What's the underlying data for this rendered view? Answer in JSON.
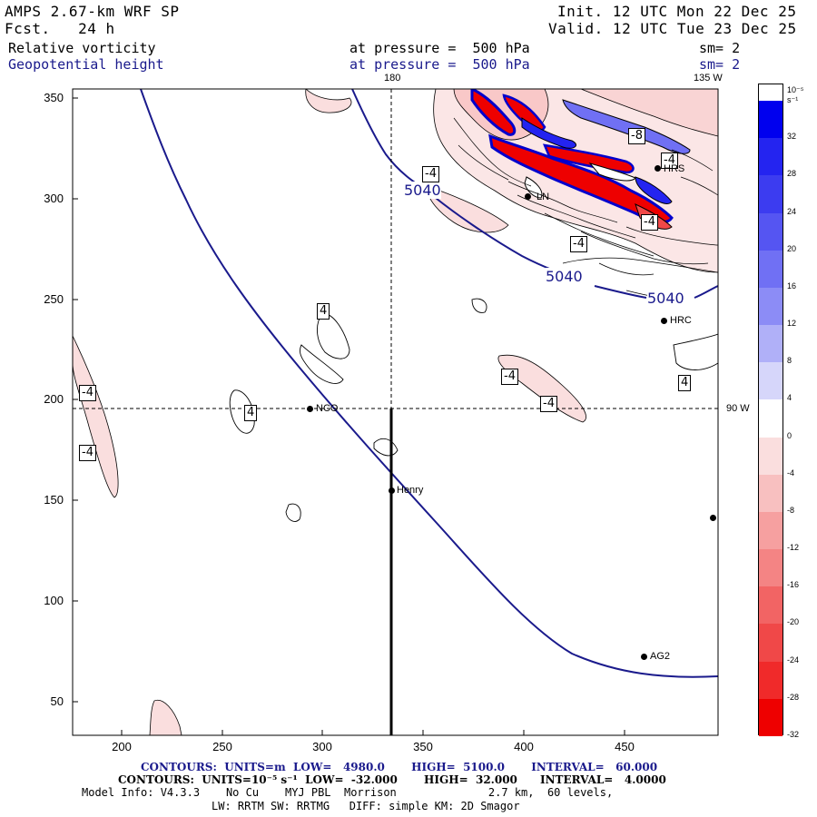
{
  "header": {
    "model": "AMPS 2.67-km WRF SP",
    "forecast": "Fcst.   24 h",
    "init": "Init. 12 UTC Mon 22 Dec 25",
    "valid": "Valid. 12 UTC Tue 23 Dec 25",
    "field1": "Relative vorticity",
    "field1_pressure": "at pressure =  500 hPa",
    "field1_sm": "sm= 2",
    "field2": "Geopotential height",
    "field2_pressure": "at pressure =  500 hPa",
    "field2_sm": "sm= 2"
  },
  "axes": {
    "x_ticks": [
      "200",
      "250",
      "300",
      "350",
      "400",
      "450"
    ],
    "y_ticks": [
      "350",
      "300",
      "250",
      "200",
      "150",
      "100",
      "50"
    ],
    "meridian_180": "180",
    "meridian_135w": "135 W",
    "meridian_90w": "90 W"
  },
  "stations": [
    {
      "name": "NCO"
    },
    {
      "name": "Henry"
    },
    {
      "name": "HRC"
    },
    {
      "name": "AG2"
    },
    {
      "name": "LN"
    },
    {
      "name": "HRS"
    },
    {
      "name": ""
    }
  ],
  "contour_labels": {
    "height": [
      "5040",
      "5040",
      "5040"
    ],
    "vorticity": [
      "-4",
      "4",
      "-4",
      "4",
      "-4",
      "-4",
      "-4",
      "-4",
      "4",
      "-4",
      "-8",
      "-4",
      "-4"
    ]
  },
  "colorbar": {
    "units": "10⁻⁵ s⁻¹",
    "labels": [
      "32",
      "28",
      "24",
      "20",
      "16",
      "12",
      "8",
      "4",
      "0",
      "-4",
      "-8",
      "-12",
      "-16",
      "-20",
      "-24",
      "-28",
      "-32"
    ],
    "colors": [
      "#0000ee",
      "#2424f0",
      "#3c3cf0",
      "#5555f2",
      "#7070f4",
      "#8c8cf6",
      "#b0b0f8",
      "#d6d6fa",
      "#ffffff",
      "#fadede",
      "#f8c0c0",
      "#f6a0a0",
      "#f48484",
      "#f26464",
      "#f04848",
      "#f02a2a",
      "#ee0000"
    ]
  },
  "footer": {
    "contours_height": "CONTOURS:  UNITS=m  LOW=   4980.0       HIGH=  5100.0       INTERVAL=   60.000",
    "contours_vort": "CONTOURS:  UNITS=10⁻⁵ s⁻¹  LOW=  -32.000       HIGH=  32.000      INTERVAL=   4.0000",
    "model_info": "Model Info: V4.3.3    No Cu    MYJ PBL  Morrison              2.7 km,  60 levels,",
    "model_info2": "LW: RRTM SW: RRTMG   DIFF: simple KM: 2D Smagor"
  }
}
